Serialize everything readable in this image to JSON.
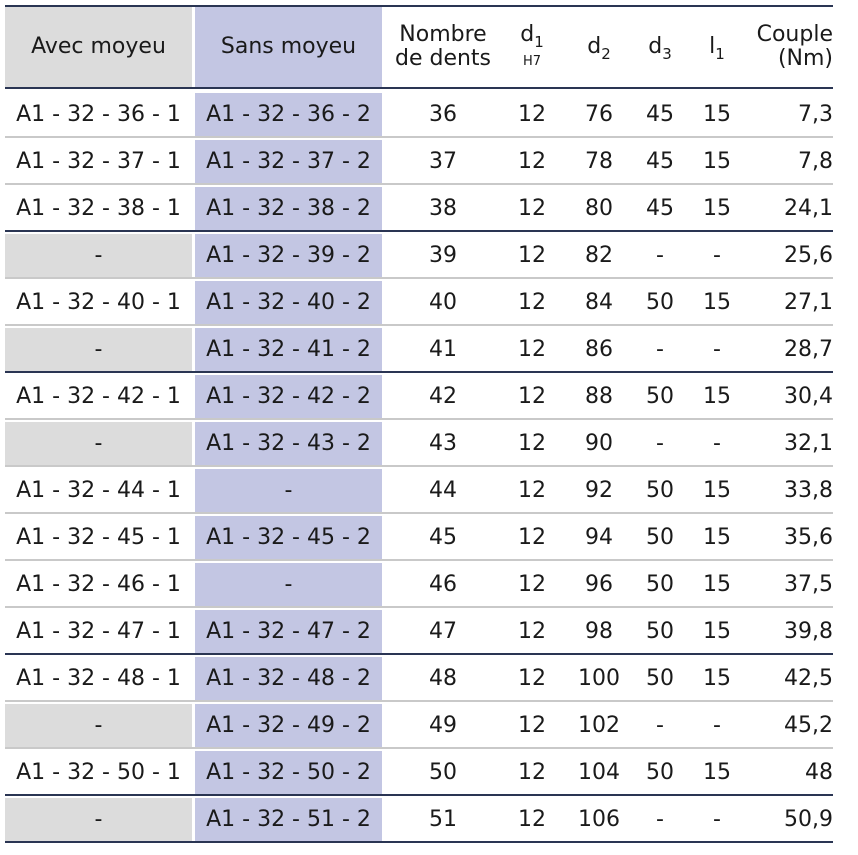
{
  "headers": {
    "avec_moyeu": "Avec moyeu",
    "sans_moyeu": "Sans moyeu",
    "nombre_line1": "Nombre",
    "nombre_line2": "de dents",
    "d1_main": "d",
    "d1_sub": "1",
    "d1_tol": "H7",
    "d2_main": "d",
    "d2_sub": "2",
    "d3_main": "d",
    "d3_sub": "3",
    "l1_main": "l",
    "l1_sub": "1",
    "couple_line1": "Couple",
    "couple_line2": "(Nm)"
  },
  "rows": [
    {
      "avec": "A1 - 32 - 36 - 1",
      "sans": "A1 - 32 - 36 - 2",
      "dents": "36",
      "d1": "12",
      "d2": "76",
      "d3": "45",
      "l1": "15",
      "couple": "7,3",
      "avec_gray": false
    },
    {
      "avec": "A1 - 32 - 37 - 1",
      "sans": "A1 - 32 - 37 - 2",
      "dents": "37",
      "d1": "12",
      "d2": "78",
      "d3": "45",
      "l1": "15",
      "couple": "7,8",
      "avec_gray": false
    },
    {
      "avec": "A1 - 32 - 38 - 1",
      "sans": "A1 - 32 - 38 - 2",
      "dents": "38",
      "d1": "12",
      "d2": "80",
      "d3": "45",
      "l1": "15",
      "couple": "24,1",
      "avec_gray": false
    },
    {
      "avec": "-",
      "sans": "A1 - 32 - 39 - 2",
      "dents": "39",
      "d1": "12",
      "d2": "82",
      "d3": "-",
      "l1": "-",
      "couple": "25,6",
      "avec_gray": true
    },
    {
      "avec": "A1 - 32 - 40 - 1",
      "sans": "A1 - 32 - 40 - 2",
      "dents": "40",
      "d1": "12",
      "d2": "84",
      "d3": "50",
      "l1": "15",
      "couple": "27,1",
      "avec_gray": false
    },
    {
      "avec": "-",
      "sans": "A1 - 32 - 41 - 2",
      "dents": "41",
      "d1": "12",
      "d2": "86",
      "d3": "-",
      "l1": "-",
      "couple": "28,7",
      "avec_gray": true
    },
    {
      "avec": "A1 - 32 - 42 - 1",
      "sans": "A1 - 32 - 42 - 2",
      "dents": "42",
      "d1": "12",
      "d2": "88",
      "d3": "50",
      "l1": "15",
      "couple": "30,4",
      "avec_gray": false
    },
    {
      "avec": "-",
      "sans": "A1 - 32 - 43 - 2",
      "dents": "43",
      "d1": "12",
      "d2": "90",
      "d3": "-",
      "l1": "-",
      "couple": "32,1",
      "avec_gray": true
    },
    {
      "avec": "A1 - 32 - 44 - 1",
      "sans": "-",
      "dents": "44",
      "d1": "12",
      "d2": "92",
      "d3": "50",
      "l1": "15",
      "couple": "33,8",
      "avec_gray": false
    },
    {
      "avec": "A1 - 32 - 45 - 1",
      "sans": "A1 - 32 - 45 - 2",
      "dents": "45",
      "d1": "12",
      "d2": "94",
      "d3": "50",
      "l1": "15",
      "couple": "35,6",
      "avec_gray": false
    },
    {
      "avec": "A1 - 32 - 46 - 1",
      "sans": "-",
      "dents": "46",
      "d1": "12",
      "d2": "96",
      "d3": "50",
      "l1": "15",
      "couple": "37,5",
      "avec_gray": false
    },
    {
      "avec": "A1 - 32 - 47 - 1",
      "sans": "A1 - 32 - 47 - 2",
      "dents": "47",
      "d1": "12",
      "d2": "98",
      "d3": "50",
      "l1": "15",
      "couple": "39,8",
      "avec_gray": false
    },
    {
      "avec": "A1 - 32 - 48 - 1",
      "sans": "A1 - 32 - 48 - 2",
      "dents": "48",
      "d1": "12",
      "d2": "100",
      "d3": "50",
      "l1": "15",
      "couple": "42,5",
      "avec_gray": false
    },
    {
      "avec": "-",
      "sans": "A1 - 32 - 49 - 2",
      "dents": "49",
      "d1": "12",
      "d2": "102",
      "d3": "-",
      "l1": "-",
      "couple": "45,2",
      "avec_gray": true
    },
    {
      "avec": "A1 - 32 - 50 - 1",
      "sans": "A1 - 32 - 50 - 2",
      "dents": "50",
      "d1": "12",
      "d2": "104",
      "d3": "50",
      "l1": "15",
      "couple": "48",
      "avec_gray": false
    },
    {
      "avec": "-",
      "sans": "A1 - 32 - 51 - 2",
      "dents": "51",
      "d1": "12",
      "d2": "106",
      "d3": "-",
      "l1": "-",
      "couple": "50,9",
      "avec_gray": true
    }
  ],
  "dark_separator_after_rows": [
    2,
    5,
    11,
    14,
    15
  ],
  "colors": {
    "header_gray": "#dcdcdc",
    "sans_blue": "#c3c6e3",
    "rule_dark": "#2a3553",
    "rule_light": "#c9c9c9"
  }
}
